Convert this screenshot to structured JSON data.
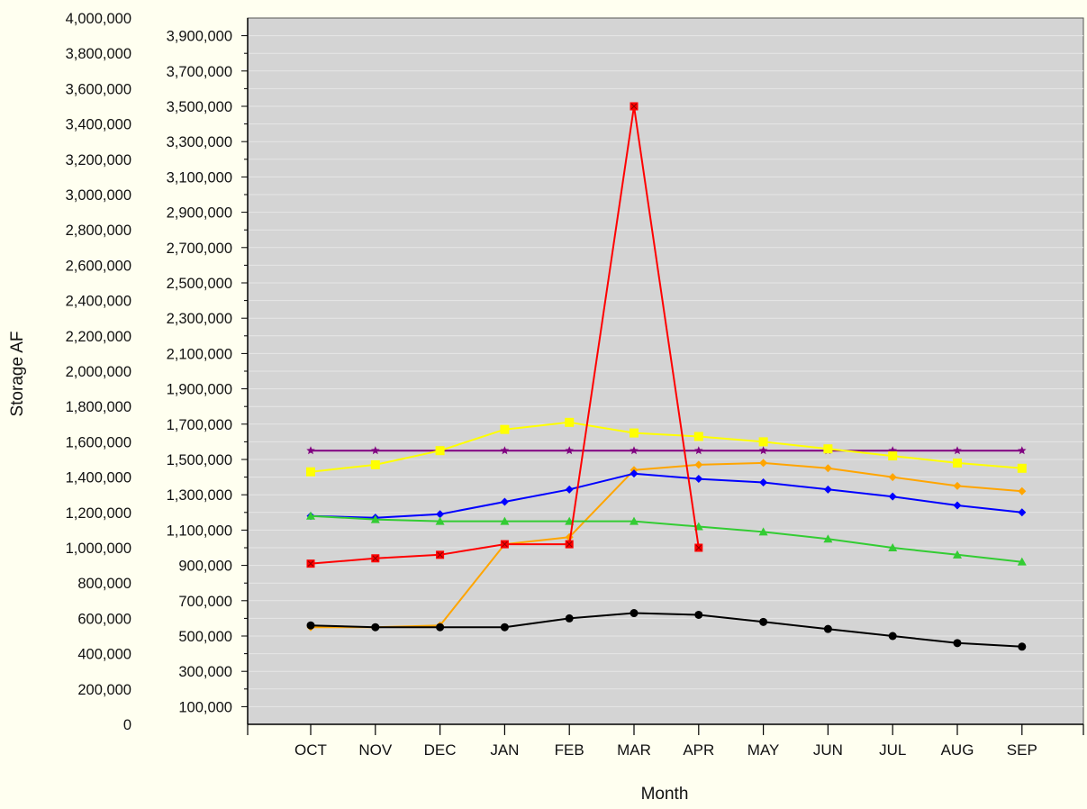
{
  "chart_data": {
    "type": "line",
    "xlabel": "Month",
    "ylabel": "Storage AF",
    "categories": [
      "OCT",
      "NOV",
      "DEC",
      "JAN",
      "FEB",
      "MAR",
      "APR",
      "MAY",
      "JUN",
      "JUL",
      "AUG",
      "SEP"
    ],
    "y_left": {
      "range": [
        0,
        4000000
      ],
      "ticks": [
        "0",
        "200,000",
        "400,000",
        "600,000",
        "800,000",
        "1,000,000",
        "1,200,000",
        "1,400,000",
        "1,600,000",
        "1,800,000",
        "2,000,000",
        "2,200,000",
        "2,400,000",
        "2,600,000",
        "2,800,000",
        "3,000,000",
        "3,200,000",
        "3,400,000",
        "3,600,000",
        "3,800,000",
        "4,000,000"
      ]
    },
    "y_right": {
      "range": [
        0,
        4000000
      ],
      "ticks": [
        "100,000",
        "300,000",
        "500,000",
        "700,000",
        "900,000",
        "1,100,000",
        "1,300,000",
        "1,500,000",
        "1,700,000",
        "1,900,000",
        "2,100,000",
        "2,300,000",
        "2,500,000",
        "2,700,000",
        "2,900,000",
        "3,100,000",
        "3,300,000",
        "3,500,000",
        "3,700,000",
        "3,900,000"
      ]
    },
    "grid": true,
    "plot_background": "#d4d4d4",
    "page_background": "#fffff0",
    "series": [
      {
        "color": "#800080",
        "marker": "star",
        "values": [
          1550000,
          1550000,
          1550000,
          1550000,
          1550000,
          1550000,
          1550000,
          1550000,
          1550000,
          1550000,
          1550000,
          1550000
        ]
      },
      {
        "color": "#ffff00",
        "marker": "square",
        "values": [
          1430000,
          1470000,
          1550000,
          1670000,
          1710000,
          1650000,
          1630000,
          1600000,
          1560000,
          1520000,
          1480000,
          1450000
        ]
      },
      {
        "color": "#ffa500",
        "marker": "diamond",
        "values": [
          550000,
          550000,
          560000,
          1020000,
          1060000,
          1440000,
          1470000,
          1480000,
          1450000,
          1400000,
          1350000,
          1320000
        ]
      },
      {
        "color": "#0000ff",
        "marker": "diamond",
        "values": [
          1180000,
          1170000,
          1190000,
          1260000,
          1330000,
          1420000,
          1390000,
          1370000,
          1330000,
          1290000,
          1240000,
          1200000
        ]
      },
      {
        "color": "#33cc33",
        "marker": "triangle",
        "values": [
          1180000,
          1160000,
          1150000,
          1150000,
          1150000,
          1150000,
          1120000,
          1090000,
          1050000,
          1000000,
          960000,
          920000
        ]
      },
      {
        "color": "#ff0000",
        "marker": "x-square",
        "values": [
          910000,
          940000,
          960000,
          1020000,
          1020000,
          3500000,
          1000000,
          null,
          null,
          null,
          null,
          null
        ]
      },
      {
        "color": "#000000",
        "marker": "circle",
        "values": [
          560000,
          550000,
          550000,
          550000,
          600000,
          630000,
          620000,
          580000,
          540000,
          500000,
          460000,
          440000
        ]
      }
    ]
  }
}
